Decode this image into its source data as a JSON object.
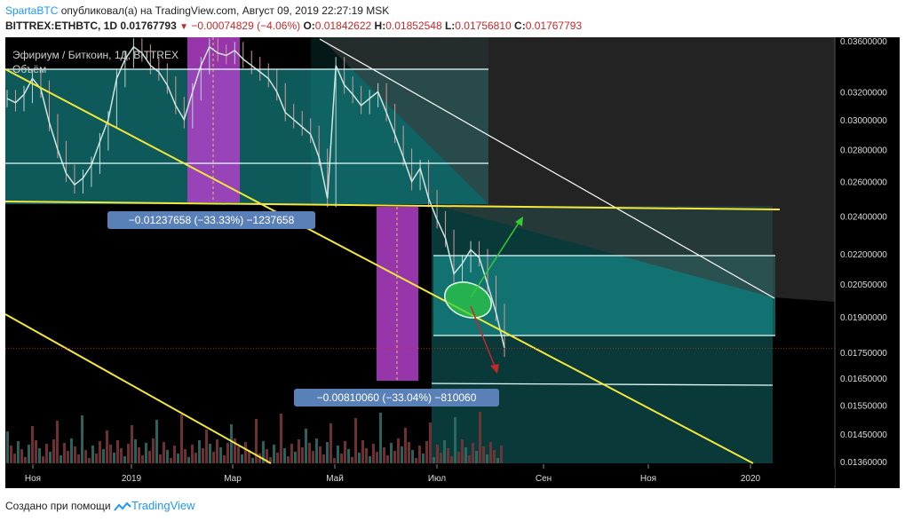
{
  "header": {
    "author": "SpartaBTC",
    "published_text": "опубликовал(а) на TradingView.com, Август 09, 2019 22:27:19 MSK",
    "symbol": "BITTREX:ETHBTC, 1D",
    "last": "0.01767793",
    "change": "−0.00074829 (−4.06%)",
    "o_label": "O:",
    "o_value": "0.01842622",
    "h_label": "H:",
    "h_value": "0.01852548",
    "l_label": "L:",
    "l_value": "0.01756810",
    "c_label": "C:",
    "c_value": "0.01767793"
  },
  "legend": {
    "title": "Эфириум / Биткоин, 1Д, BITTREX",
    "volume": "Объём"
  },
  "footer": {
    "created_with": "Создано при помощи",
    "brand": "TradingView"
  },
  "colors": {
    "background": "#000000",
    "teal": "#19a3a3",
    "magenta": "#b040c8",
    "yellow": "#f4e83a",
    "candle_up": "#b9d7d2",
    "candle_down": "#d49a9a",
    "label_box": "#5a80b8"
  },
  "annotations": {
    "measure1": "−0.01237658 (−33.33%) −1237658",
    "measure2": "−0.00810060 (−33.04%) −810060"
  },
  "chart_data": {
    "type": "line",
    "title": "Эфириум / Биткоин, 1Д, BITTREX",
    "scale": "log",
    "ylim": [
      0.0134,
      0.0368
    ],
    "y_ticks": [
      0.036,
      0.032,
      0.03,
      0.028,
      0.026,
      0.024,
      0.022,
      0.0205,
      0.019,
      0.0175,
      0.0165,
      0.0155,
      0.0145,
      0.0136
    ],
    "y_tick_labels": [
      "0.03600000",
      "0.03200000",
      "0.03000000",
      "0.02800000",
      "0.02600000",
      "0.02400000",
      "0.02200000",
      "0.02050000",
      "0.01900000",
      "0.01750000",
      "0.01650000",
      "0.01550000",
      "0.01450000",
      "0.01360000"
    ],
    "x_tick_labels": [
      "Ноя",
      "2019",
      "Мар",
      "Май",
      "Июл",
      "Сен",
      "Ноя",
      "2020"
    ],
    "series": [
      {
        "values": [
          0.0315,
          0.0312,
          0.0318,
          0.033,
          0.0322,
          0.0298,
          0.028,
          0.0265,
          0.0258,
          0.0262,
          0.027,
          0.0285,
          0.03,
          0.033,
          0.0345,
          0.0355,
          0.035,
          0.034,
          0.0335,
          0.0325,
          0.031,
          0.03,
          0.032,
          0.034,
          0.0355,
          0.035,
          0.0348,
          0.0352,
          0.0345,
          0.034,
          0.0335,
          0.033,
          0.032,
          0.0305,
          0.03,
          0.0295,
          0.029,
          0.0275,
          0.025,
          0.034,
          0.0325,
          0.0318,
          0.031,
          0.0315,
          0.032,
          0.0305,
          0.029,
          0.0275,
          0.026,
          0.0268,
          0.025,
          0.0238,
          0.0228,
          0.021,
          0.0215,
          0.0222,
          0.0218,
          0.0205,
          0.0192,
          0.01768
        ]
      }
    ],
    "current_price": 0.01767793
  }
}
